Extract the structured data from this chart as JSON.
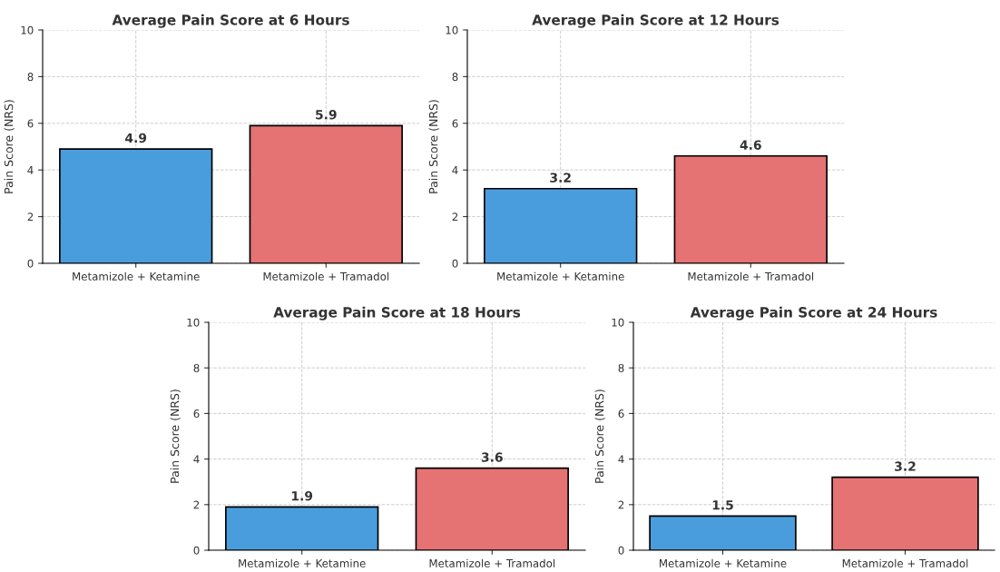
{
  "chart_data": [
    {
      "type": "bar",
      "title": "Average Pain Score at 6 Hours",
      "ylabel": "Pain Score (NRS)",
      "categories": [
        "Metamizole + Ketamine",
        "Metamizole + Tramadol"
      ],
      "values": [
        4.9,
        5.9
      ],
      "colors": [
        "#4a9ddc",
        "#e57373"
      ],
      "ylim": [
        0,
        10
      ],
      "yticks": [
        0,
        2,
        4,
        6,
        8,
        10
      ],
      "grid": true,
      "data_labels": true
    },
    {
      "type": "bar",
      "title": "Average Pain Score at 12 Hours",
      "ylabel": "Pain Score (NRS)",
      "categories": [
        "Metamizole + Ketamine",
        "Metamizole + Tramadol"
      ],
      "values": [
        3.2,
        4.6
      ],
      "colors": [
        "#4a9ddc",
        "#e57373"
      ],
      "ylim": [
        0,
        10
      ],
      "yticks": [
        0,
        2,
        4,
        6,
        8,
        10
      ],
      "grid": true,
      "data_labels": true
    },
    {
      "type": "bar",
      "title": "Average Pain Score at 18 Hours",
      "ylabel": "Pain Score (NRS)",
      "categories": [
        "Metamizole + Ketamine",
        "Metamizole + Tramadol"
      ],
      "values": [
        1.9,
        3.6
      ],
      "colors": [
        "#4a9ddc",
        "#e57373"
      ],
      "ylim": [
        0,
        10
      ],
      "yticks": [
        0,
        2,
        4,
        6,
        8,
        10
      ],
      "grid": true,
      "data_labels": true
    },
    {
      "type": "bar",
      "title": "Average Pain Score at 24 Hours",
      "ylabel": "Pain Score (NRS)",
      "categories": [
        "Metamizole + Ketamine",
        "Metamizole + Tramadol"
      ],
      "values": [
        1.5,
        3.2
      ],
      "colors": [
        "#4a9ddc",
        "#e57373"
      ],
      "ylim": [
        0,
        10
      ],
      "yticks": [
        0,
        2,
        4,
        6,
        8,
        10
      ],
      "grid": true,
      "data_labels": true
    }
  ]
}
